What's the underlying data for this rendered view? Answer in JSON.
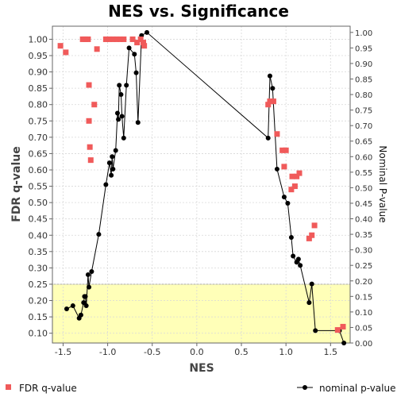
{
  "chart_data": {
    "type": "scatter",
    "title": "NES vs. Significance",
    "xlabel": "NES",
    "ylabel": "FDR q-value",
    "y2label": "Nominal P-value",
    "xlim": [
      -1.62,
      1.72
    ],
    "ylim": [
      0.07,
      1.04
    ],
    "y2lim": [
      0.0,
      1.02
    ],
    "x_ticks": [
      -1.5,
      -1.0,
      -0.5,
      0.0,
      0.5,
      1.0,
      1.5
    ],
    "x_tick_labels": [
      "-1.5",
      "-1.0",
      "-0.5",
      "0.0",
      "0.5",
      "1.0",
      "1.5"
    ],
    "y_ticks": [
      0.1,
      0.15,
      0.2,
      0.25,
      0.3,
      0.35,
      0.4,
      0.45,
      0.5,
      0.55,
      0.6,
      0.65,
      0.7,
      0.75,
      0.8,
      0.85,
      0.9,
      0.95,
      1.0
    ],
    "y_tick_labels": [
      "0.10",
      "0.15",
      "0.20",
      "0.25",
      "0.30",
      "0.35",
      "0.40",
      "0.45",
      "0.50",
      "0.55",
      "0.60",
      "0.65",
      "0.70",
      "0.75",
      "0.80",
      "0.85",
      "0.90",
      "0.95",
      "1.00"
    ],
    "y2_ticks": [
      0.0,
      0.05,
      0.1,
      0.15,
      0.2,
      0.25,
      0.3,
      0.35,
      0.4,
      0.45,
      0.5,
      0.55,
      0.6,
      0.65,
      0.7,
      0.75,
      0.8,
      0.85,
      0.9,
      0.95,
      1.0
    ],
    "y2_tick_labels": [
      "0.00",
      "0.05",
      "0.10",
      "0.15",
      "0.20",
      "0.25",
      "0.30",
      "0.35",
      "0.40",
      "0.45",
      "0.50",
      "0.55",
      "0.60",
      "0.65",
      "0.70",
      "0.75",
      "0.80",
      "0.85",
      "0.90",
      "0.95",
      "1.00"
    ],
    "grid": true,
    "highlight_region": {
      "y_from": 0.07,
      "y_to": 0.25,
      "color": "#ffffb8"
    },
    "legend_position": "bottom",
    "series": [
      {
        "name": "FDR q-value",
        "axis": "left",
        "marker": "square",
        "color": "#f05a5a",
        "points": [
          [
            -1.53,
            0.98
          ],
          [
            -1.47,
            0.96
          ],
          [
            -1.28,
            1.0
          ],
          [
            -1.25,
            1.0
          ],
          [
            -1.22,
            1.0
          ],
          [
            -1.21,
            0.86
          ],
          [
            -1.21,
            0.75
          ],
          [
            -1.2,
            0.67
          ],
          [
            -1.19,
            0.63
          ],
          [
            -1.15,
            0.8
          ],
          [
            -1.12,
            0.97
          ],
          [
            -1.02,
            1.0
          ],
          [
            -0.98,
            1.0
          ],
          [
            -0.94,
            1.0
          ],
          [
            -0.9,
            1.0
          ],
          [
            -0.86,
            1.0
          ],
          [
            -0.82,
            1.0
          ],
          [
            -0.72,
            1.0
          ],
          [
            -0.67,
            0.99
          ],
          [
            -0.63,
            1.0
          ],
          [
            -0.6,
            0.99
          ],
          [
            -0.59,
            0.98
          ],
          [
            0.8,
            0.8
          ],
          [
            0.82,
            0.81
          ],
          [
            0.86,
            0.81
          ],
          [
            0.9,
            0.71
          ],
          [
            0.96,
            0.66
          ],
          [
            0.98,
            0.61
          ],
          [
            1.0,
            0.66
          ],
          [
            1.06,
            0.54
          ],
          [
            1.07,
            0.58
          ],
          [
            1.1,
            0.55
          ],
          [
            1.12,
            0.58
          ],
          [
            1.15,
            0.59
          ],
          [
            1.26,
            0.39
          ],
          [
            1.29,
            0.4
          ],
          [
            1.32,
            0.43
          ],
          [
            1.58,
            0.11
          ],
          [
            1.64,
            0.12
          ]
        ]
      },
      {
        "name": "nominal p-value",
        "axis": "right",
        "marker": "circle",
        "color": "#000000",
        "connected": true,
        "points": [
          [
            -1.46,
            0.11
          ],
          [
            -1.39,
            0.12
          ],
          [
            -1.32,
            0.08
          ],
          [
            -1.3,
            0.09
          ],
          [
            -1.27,
            0.13
          ],
          [
            -1.26,
            0.15
          ],
          [
            -1.25,
            0.15
          ],
          [
            -1.24,
            0.12
          ],
          [
            -1.22,
            0.22
          ],
          [
            -1.21,
            0.18
          ],
          [
            -1.18,
            0.23
          ],
          [
            -1.1,
            0.35
          ],
          [
            -1.02,
            0.51
          ],
          [
            -0.98,
            0.58
          ],
          [
            -0.96,
            0.54
          ],
          [
            -0.95,
            0.6
          ],
          [
            -0.94,
            0.56
          ],
          [
            -0.91,
            0.62
          ],
          [
            -0.89,
            0.74
          ],
          [
            -0.88,
            0.72
          ],
          [
            -0.87,
            0.83
          ],
          [
            -0.85,
            0.8
          ],
          [
            -0.84,
            0.73
          ],
          [
            -0.82,
            0.66
          ],
          [
            -0.79,
            0.83
          ],
          [
            -0.76,
            0.95
          ],
          [
            -0.7,
            0.93
          ],
          [
            -0.68,
            0.87
          ],
          [
            -0.66,
            0.71
          ],
          [
            -0.62,
            0.99
          ],
          [
            -0.56,
            1.0
          ],
          [
            0.8,
            0.66
          ],
          [
            0.82,
            0.86
          ],
          [
            0.85,
            0.82
          ],
          [
            0.9,
            0.56
          ],
          [
            0.98,
            0.47
          ],
          [
            1.02,
            0.45
          ],
          [
            1.06,
            0.34
          ],
          [
            1.08,
            0.28
          ],
          [
            1.12,
            0.26
          ],
          [
            1.14,
            0.27
          ],
          [
            1.16,
            0.25
          ],
          [
            1.26,
            0.13
          ],
          [
            1.29,
            0.19
          ],
          [
            1.33,
            0.04
          ],
          [
            1.6,
            0.04
          ],
          [
            1.65,
            0.0
          ]
        ]
      }
    ]
  }
}
